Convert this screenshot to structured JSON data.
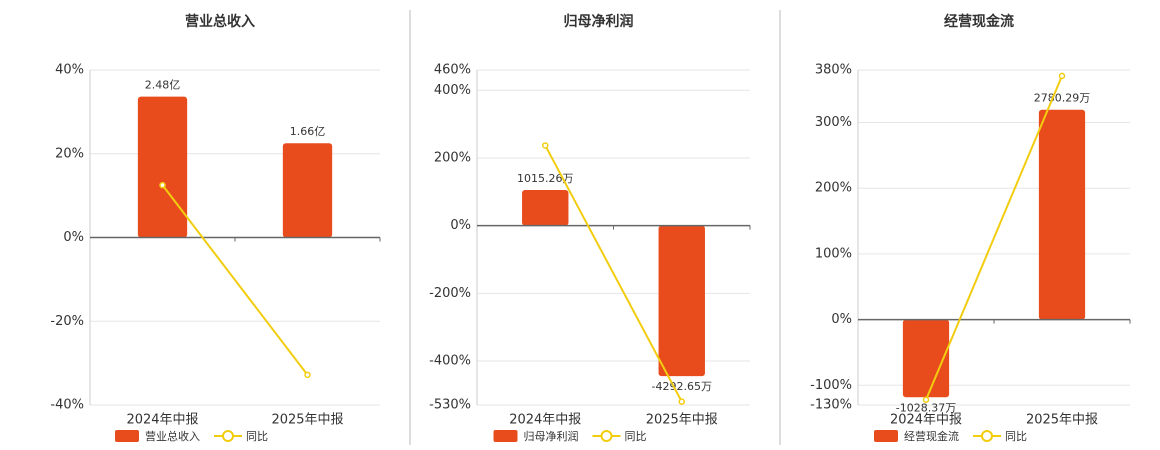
{
  "chart_data": [
    {
      "type": "combo",
      "title": "营业总收入",
      "categories": [
        "2024年中报",
        "2025年中报"
      ],
      "series": [
        {
          "name": "营业总收入",
          "type": "bar",
          "axis": "y2",
          "color": "#e84c1c",
          "values": [
            2.48,
            1.66
          ],
          "value_labels": [
            "2.48亿",
            "1.66亿"
          ]
        },
        {
          "name": "同比",
          "type": "line",
          "color": "#f2cd0f",
          "values": [
            12.5,
            -32.8
          ]
        }
      ],
      "ylim": [
        -40,
        40
      ],
      "yticks": [
        {
          "value": 40,
          "label": "40%"
        },
        {
          "value": 20,
          "label": "20%"
        },
        {
          "value": 0,
          "label": "0%"
        },
        {
          "value": -20,
          "label": "-20%"
        },
        {
          "value": -40,
          "label": "-40%"
        }
      ],
      "y2lim": [
        -2.95,
        2.95
      ],
      "grid": true,
      "legend": "bottom"
    },
    {
      "type": "combo",
      "title": "归母净利润",
      "categories": [
        "2024年中报",
        "2025年中报"
      ],
      "series": [
        {
          "name": "归母净利润",
          "type": "bar",
          "axis": "y2",
          "color": "#e84c1c",
          "values": [
            1015.26,
            -4292.65
          ],
          "value_labels": [
            "1015.26万",
            "-4292.65万"
          ]
        },
        {
          "name": "同比",
          "type": "line",
          "color": "#f2cd0f",
          "values": [
            237,
            -520
          ]
        }
      ],
      "ylim": [
        -530,
        460
      ],
      "yticks": [
        {
          "value": 460,
          "label": "460%"
        },
        {
          "value": 400,
          "label": "400%"
        },
        {
          "value": 200,
          "label": "200%"
        },
        {
          "value": 0,
          "label": "0%"
        },
        {
          "value": -200,
          "label": "-200%"
        },
        {
          "value": -400,
          "label": "-400%"
        },
        {
          "value": -530,
          "label": "-530%"
        }
      ],
      "y2lim": [
        -5115,
        4439
      ],
      "grid": true,
      "legend": "bottom"
    },
    {
      "type": "combo",
      "title": "经营现金流",
      "categories": [
        "2024年中报",
        "2025年中报"
      ],
      "series": [
        {
          "name": "经营现金流",
          "type": "bar",
          "axis": "y2",
          "color": "#e84c1c",
          "values": [
            -1028.37,
            2780.29
          ],
          "value_labels": [
            "-1028.37万",
            "2780.29万"
          ]
        },
        {
          "name": "同比",
          "type": "line",
          "color": "#f2cd0f",
          "values": [
            -122,
            371
          ]
        }
      ],
      "ylim": [
        -130,
        380
      ],
      "yticks": [
        {
          "value": 380,
          "label": "380%"
        },
        {
          "value": 300,
          "label": "300%"
        },
        {
          "value": 200,
          "label": "200%"
        },
        {
          "value": 100,
          "label": "100%"
        },
        {
          "value": 0,
          "label": "0%"
        },
        {
          "value": -100,
          "label": "-100%"
        },
        {
          "value": -130,
          "label": "-130%"
        }
      ],
      "y2lim": [
        -1131,
        3306
      ],
      "grid": true,
      "legend": "bottom"
    }
  ]
}
